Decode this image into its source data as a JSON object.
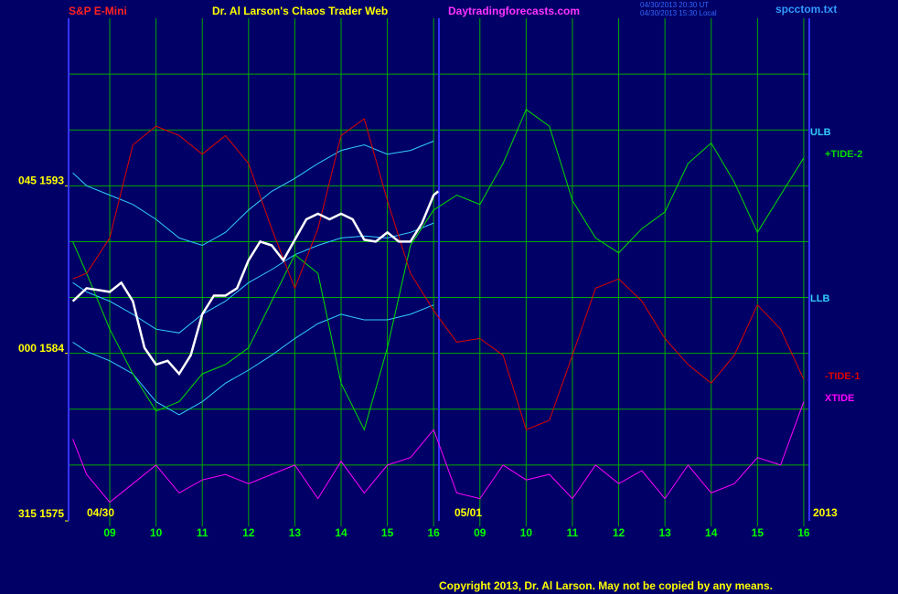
{
  "chart_data": {
    "type": "line",
    "title": "S&P E-Mini",
    "subtitle": "Dr. Al Larson's Chaos Trader Web",
    "site": "Daytradingforecasts.com",
    "timestamps": [
      "04/30/2013 20:30 UT",
      "04/30/2013 15:30 Local"
    ],
    "file": "spcctom.txt",
    "date_labels": [
      "04/30",
      "05/01",
      "2013"
    ],
    "copyright": "Copyright 2013, Dr. Al Larson. May not be copied by any means.",
    "xlim": [
      0.11,
      16.12
    ],
    "ylim": [
      1575,
      1602
    ],
    "xticks": [
      {
        "value": 1,
        "label": "09"
      },
      {
        "value": 2,
        "label": "10"
      },
      {
        "value": 3,
        "label": "11"
      },
      {
        "value": 4,
        "label": "12"
      },
      {
        "value": 5,
        "label": "13"
      },
      {
        "value": 6,
        "label": "14"
      },
      {
        "value": 7,
        "label": "15"
      },
      {
        "value": 8,
        "label": "16"
      },
      {
        "value": 9,
        "label": "09"
      },
      {
        "value": 10,
        "label": "10"
      },
      {
        "value": 11,
        "label": "11"
      },
      {
        "value": 12,
        "label": "12"
      },
      {
        "value": 13,
        "label": "13"
      },
      {
        "value": 14,
        "label": "14"
      },
      {
        "value": 15,
        "label": "15"
      },
      {
        "value": 16,
        "label": "16"
      }
    ],
    "yticks": [
      {
        "value": 1593,
        "label": "045 1593"
      },
      {
        "value": 1584,
        "label": "000 1584"
      },
      {
        "value": 1575,
        "label": "315 1575"
      }
    ],
    "grid": true,
    "ygrid": [
      1578,
      1581,
      1584,
      1587,
      1590,
      1593,
      1596,
      1599
    ],
    "x": [
      0.2,
      0.5,
      1,
      1.5,
      2,
      2.5,
      3,
      3.5,
      4,
      4.5,
      5,
      5.5,
      6,
      6.5,
      7,
      7.5,
      8,
      8.5,
      9,
      9.5,
      10,
      10.5,
      11,
      11.5,
      12,
      12.5,
      13,
      13.5,
      14,
      14.5,
      15,
      15.5,
      16
    ],
    "series": [
      {
        "name": "ULB",
        "color": "#33ccff",
        "values": [
          1593.7,
          1593.0,
          1592.5,
          1592.0,
          1591.2,
          1590.2,
          1589.8,
          1590.5,
          1591.7,
          1592.7,
          1593.4,
          1594.2,
          1594.9,
          1595.2,
          1594.7,
          1594.9,
          1595.4,
          null,
          null,
          null,
          null,
          null,
          null,
          null,
          null,
          null,
          null,
          null,
          null,
          null,
          null,
          null,
          null
        ]
      },
      {
        "color": "#33ccff",
        "values": [
          1587.8,
          1587.3,
          1586.8,
          1586.1,
          1585.3,
          1585.1,
          1586.1,
          1586.8,
          1587.8,
          1588.5,
          1589.3,
          1589.8,
          1590.2,
          1590.3,
          1590.2,
          1590.5,
          1591.0,
          null,
          null,
          null,
          null,
          null,
          null,
          null,
          null,
          null,
          null,
          null,
          null,
          null,
          null,
          null,
          null
        ]
      },
      {
        "name": "LLB",
        "color": "#33ccff",
        "values": [
          1584.6,
          1584.1,
          1583.6,
          1582.9,
          1581.4,
          1580.7,
          1581.4,
          1582.4,
          1583.1,
          1583.9,
          1584.8,
          1585.6,
          1586.1,
          1585.8,
          1585.8,
          1586.1,
          1586.6,
          null,
          null,
          null,
          null,
          null,
          null,
          null,
          null,
          null,
          null,
          null,
          null,
          null,
          null,
          null,
          null
        ]
      },
      {
        "name": "+TIDE-2",
        "color": "#00dd00",
        "values": [
          1590.0,
          1588.3,
          1585.3,
          1582.9,
          1580.9,
          1581.4,
          1582.9,
          1583.4,
          1584.3,
          1586.8,
          1589.3,
          1588.3,
          1582.4,
          1579.9,
          1584.3,
          1589.8,
          1591.7,
          1592.5,
          1592.0,
          1594.2,
          1597.1,
          1596.2,
          1592.2,
          1590.2,
          1589.4,
          1590.7,
          1591.6,
          1594.2,
          1595.3,
          1593.2,
          1590.5,
          1592.5,
          1594.5
        ]
      },
      {
        "name": "-TIDE-1",
        "color": "#dd0000",
        "values": [
          1588.0,
          1588.3,
          1590.2,
          1595.2,
          1596.2,
          1595.7,
          1594.7,
          1595.7,
          1594.2,
          1590.7,
          1587.5,
          1590.7,
          1595.7,
          1596.6,
          1592.2,
          1588.3,
          1586.3,
          1584.6,
          1584.8,
          1583.9,
          1579.9,
          1580.4,
          1583.9,
          1587.5,
          1588.0,
          1586.8,
          1584.8,
          1583.4,
          1582.4,
          1583.9,
          1586.6,
          1585.3,
          1582.6
        ]
      },
      {
        "name": "XTIDE",
        "color": "#ff00ff",
        "values": [
          1579.4,
          1577.5,
          1576.0,
          1577.0,
          1578.0,
          1576.5,
          1577.2,
          1577.5,
          1577.0,
          1577.5,
          1578.0,
          1576.2,
          1578.2,
          1576.5,
          1578.0,
          1578.4,
          1579.9,
          1576.5,
          1576.2,
          1578.0,
          1577.2,
          1577.5,
          1576.2,
          1578.0,
          1577.0,
          1577.7,
          1576.2,
          1578.0,
          1576.5,
          1577.0,
          1578.4,
          1578.0,
          1581.4
        ]
      }
    ],
    "price": {
      "color": "#ffffff",
      "x": [
        0.2,
        0.5,
        0.75,
        1,
        1.25,
        1.5,
        1.75,
        2,
        2.25,
        2.5,
        2.75,
        3,
        3.25,
        3.5,
        3.75,
        4,
        4.25,
        4.5,
        4.75,
        5,
        5.25,
        5.5,
        5.75,
        6,
        6.25,
        6.5,
        6.75,
        7,
        7.25,
        7.5,
        7.75,
        8,
        8.1
      ],
      "values": [
        1586.8,
        1587.5,
        1587.4,
        1587.3,
        1587.8,
        1586.8,
        1584.3,
        1583.4,
        1583.6,
        1582.9,
        1583.9,
        1586.1,
        1587.1,
        1587.1,
        1587.5,
        1589.0,
        1590.0,
        1589.8,
        1589.0,
        1590.1,
        1591.2,
        1591.5,
        1591.2,
        1591.5,
        1591.2,
        1590.1,
        1590.0,
        1590.5,
        1590.0,
        1590.0,
        1591.0,
        1592.5,
        1592.7
      ]
    }
  }
}
